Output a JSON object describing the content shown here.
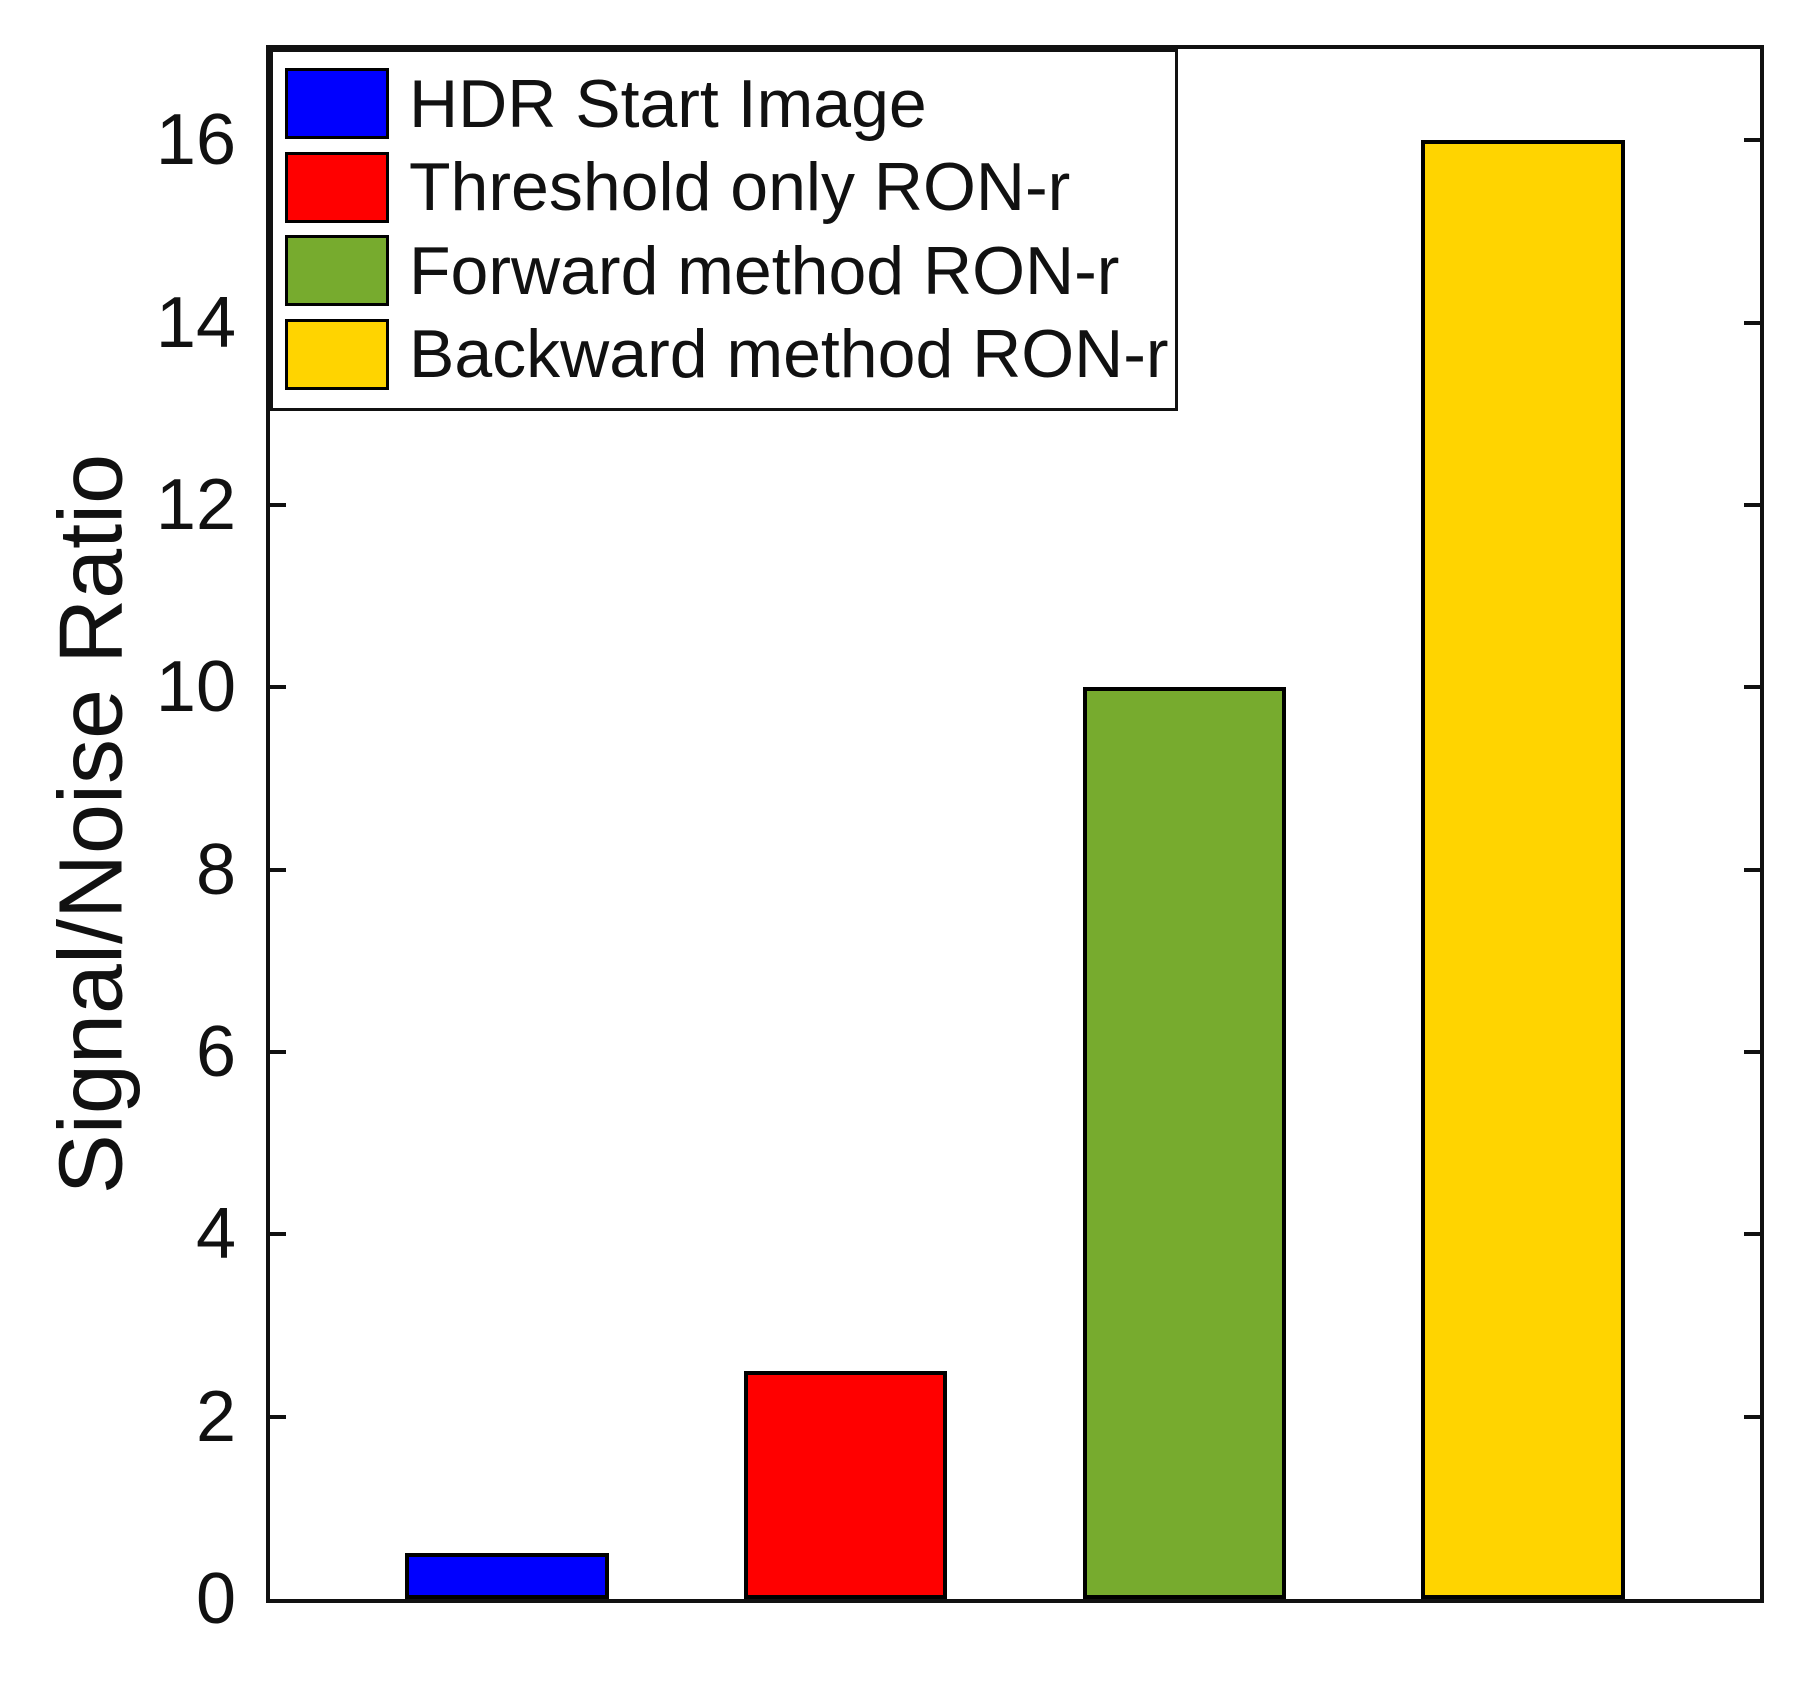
{
  "chart_data": {
    "type": "bar",
    "title": "",
    "xlabel": "",
    "ylabel": "Signal/Noise Ratio",
    "ylim": [
      0,
      17
    ],
    "yticks": [
      0,
      2,
      4,
      6,
      8,
      10,
      12,
      14,
      16
    ],
    "xticks": [],
    "grid": false,
    "legend_position": "northwest",
    "axis_color": "#111111",
    "bar_edge_color": "#000000",
    "categories": [
      "HDR Start Image",
      "Threshold only RON-r",
      "Forward method RON-r",
      "Backward method RON-r"
    ],
    "values": [
      0.5,
      2.5,
      10,
      16
    ],
    "colors": [
      "#0000FF",
      "#FF0000",
      "#77AB2E",
      "#FFD400"
    ],
    "legend": [
      {
        "label": "HDR Start Image",
        "color": "#0000FF"
      },
      {
        "label": "Threshold only RON-r",
        "color": "#FF0000"
      },
      {
        "label": "Forward method RON-r",
        "color": "#77AB2E"
      },
      {
        "label": "Backward method RON-r",
        "color": "#FFD400"
      }
    ]
  }
}
